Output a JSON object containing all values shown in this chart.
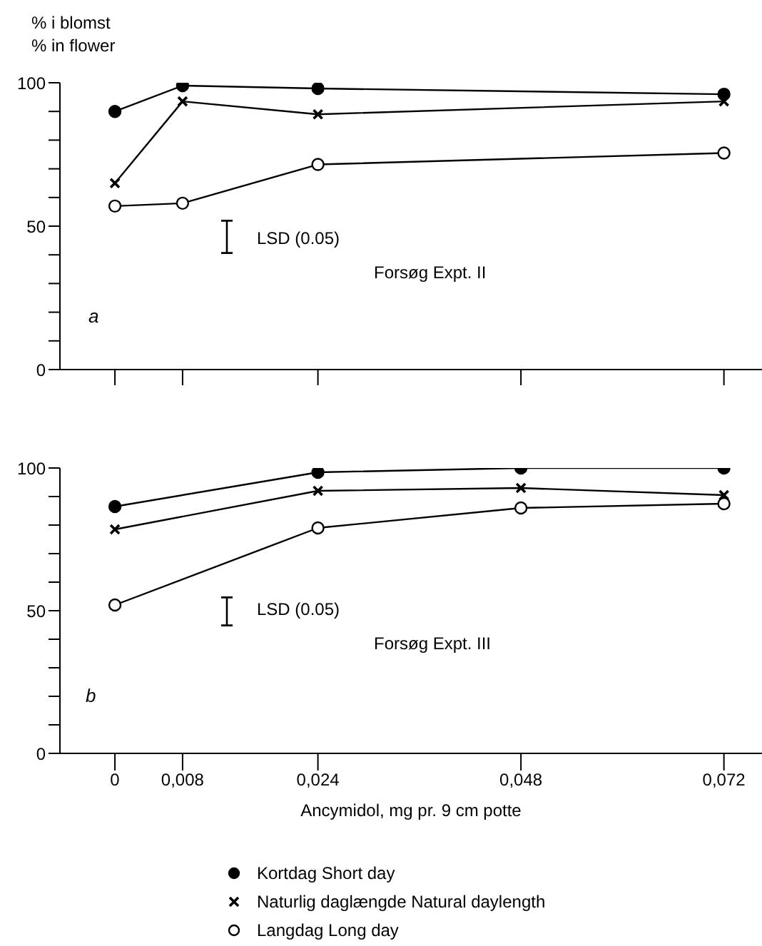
{
  "chart_data": [
    {
      "type": "line",
      "ylabel": "% i blomst\n% in flower",
      "xlim": [
        -0.0065,
        0.0765
      ],
      "xticks": [
        0,
        0.008,
        0.024,
        0.048,
        0.072
      ],
      "ylim": [
        0,
        100
      ],
      "yticks": [
        0,
        {
          "value": 10,
          "label": null
        },
        {
          "value": 20,
          "label": null
        },
        {
          "value": 30,
          "label": null
        },
        {
          "value": 40,
          "label": null
        },
        50,
        {
          "value": 60,
          "label": null
        },
        {
          "value": 70,
          "label": null
        },
        {
          "value": 80,
          "label": null
        },
        {
          "value": 90,
          "label": null
        },
        100
      ],
      "tick_labels": "y",
      "grid": false,
      "legend": false,
      "annotations": [
        "a",
        "LSD (0.05)",
        "Forsøg Expt. II"
      ],
      "series": [
        {
          "color": "#000000",
          "marker": "circle",
          "x": [
            0,
            0.008,
            0.024,
            0.072
          ],
          "values": [
            90,
            99,
            98,
            96
          ]
        },
        {
          "color": "#000000",
          "marker": "cross",
          "x": [
            0,
            0.008,
            0.024,
            0.072
          ],
          "values": [
            65,
            93.5,
            89,
            93.5
          ]
        },
        {
          "color": "#000000",
          "marker": "circle",
          "x": [
            0,
            0.008,
            0.024,
            0.072
          ],
          "values": [
            57,
            58,
            71.5,
            75.5
          ]
        }
      ]
    },
    {
      "type": "line",
      "xlabel": "Ancymidol, mg pr. 9 cm potte",
      "xlim": [
        -0.0065,
        0.0765
      ],
      "xticks": [
        0,
        {
          "value": 0.008,
          "label": "0,008"
        },
        {
          "value": 0.024,
          "label": "0,024"
        },
        {
          "value": 0.048,
          "label": "0,048"
        },
        {
          "value": 0.072,
          "label": "0,072"
        }
      ],
      "ylim": [
        0,
        100
      ],
      "yticks": [
        0,
        {
          "value": 10,
          "label": null
        },
        {
          "value": 20,
          "label": null
        },
        {
          "value": 30,
          "label": null
        },
        {
          "value": 40,
          "label": null
        },
        50,
        {
          "value": 60,
          "label": null
        },
        {
          "value": 70,
          "label": null
        },
        {
          "value": 80,
          "label": null
        },
        {
          "value": 90,
          "label": null
        },
        100
      ],
      "grid": false,
      "legend": "bottom",
      "annotations": [
        "b",
        "LSD (0.05)",
        "Forsøg Expt. III"
      ],
      "series": [
        {
          "name": "Kortdag Short day",
          "color": "#000000",
          "marker": "circle",
          "x": [
            0,
            0.024,
            0.048,
            0.072
          ],
          "values": [
            86.5,
            98.5,
            100,
            100
          ]
        },
        {
          "name": "Naturlig daglængde Natural daylength",
          "color": "#000000",
          "marker": "cross",
          "x": [
            0,
            0.024,
            0.048,
            0.072
          ],
          "values": [
            78.5,
            92,
            93,
            90.5
          ]
        },
        {
          "name": "Langdag Long day",
          "color": "#000000",
          "marker": "circle",
          "x": [
            0,
            0.024,
            0.048,
            0.072
          ],
          "values": [
            52,
            79,
            86,
            87.5
          ]
        }
      ]
    }
  ]
}
